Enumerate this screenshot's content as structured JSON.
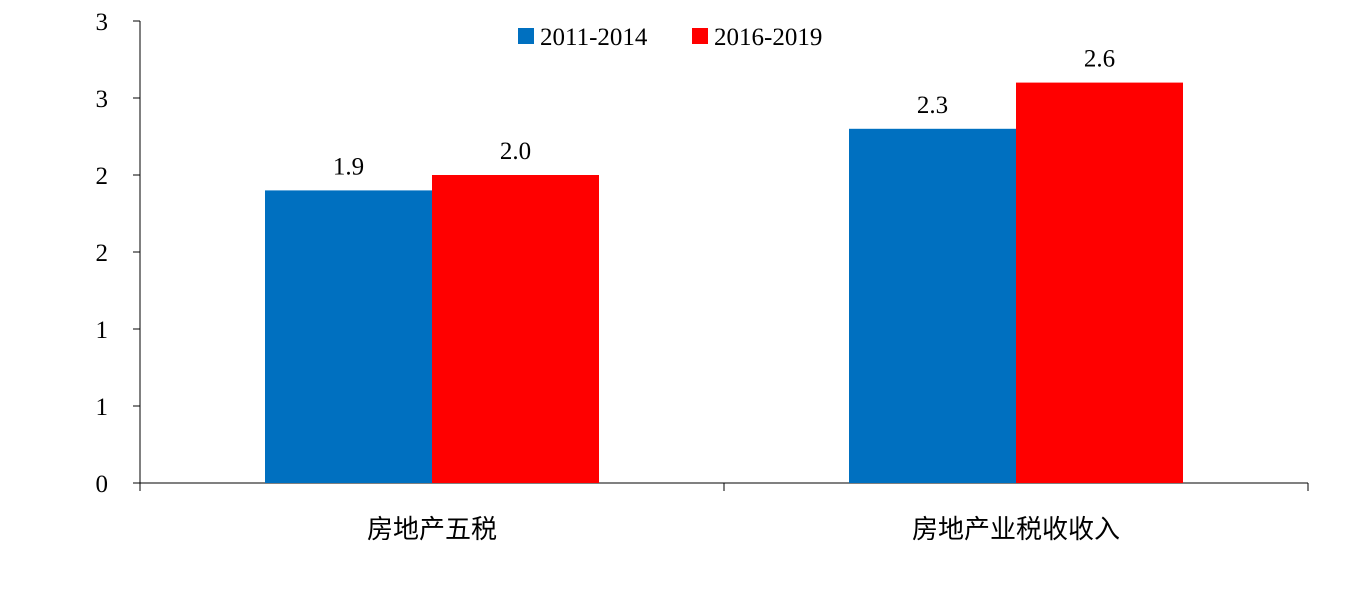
{
  "chart_data": {
    "type": "bar",
    "categories": [
      "房地产五税",
      "房地产业税收收入"
    ],
    "series": [
      {
        "name": "2011-2014",
        "values": [
          1.9,
          2.3
        ],
        "color": "#0070C0"
      },
      {
        "name": "2016-2019",
        "values": [
          2.0,
          2.6
        ],
        "color": "#FF0000"
      }
    ],
    "y_tick_values": [
      0,
      0.5,
      1.0,
      1.5,
      2.0,
      2.5,
      3.0
    ],
    "y_tick_labels": [
      "0",
      "1",
      "1",
      "2",
      "2",
      "3",
      "3"
    ],
    "ylim": [
      0,
      3.0
    ],
    "legend_position": "top-center",
    "grid": false
  }
}
